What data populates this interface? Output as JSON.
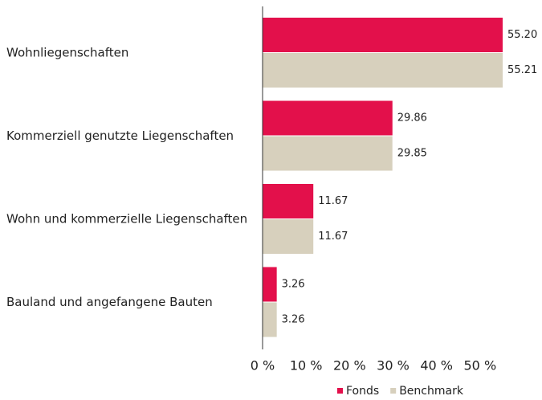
{
  "chart_data": {
    "type": "bar",
    "orientation": "horizontal",
    "categories": [
      "Wohnliegenschaften",
      "Kommerziell genutzte Liegenschaften",
      "Wohn und kommerzielle Liegenschaften",
      "Bauland und angefangene Bauten"
    ],
    "series": [
      {
        "name": "Fonds",
        "color": "#e3104b",
        "values": [
          55.2,
          29.86,
          11.67,
          3.26
        ],
        "value_labels": [
          "55.20",
          "29.86",
          "11.67",
          "3.26"
        ]
      },
      {
        "name": "Benchmark",
        "color": "#d7d0bd",
        "values": [
          55.21,
          29.85,
          11.67,
          3.26
        ],
        "value_labels": [
          "55.21",
          "29.85",
          "11.67",
          "3.26"
        ]
      }
    ],
    "xlim": [
      0,
      60
    ],
    "xticks": [
      {
        "value": 0,
        "label": "0 %"
      },
      {
        "value": 10,
        "label": "10 %"
      },
      {
        "value": 20,
        "label": "20 %"
      },
      {
        "value": 30,
        "label": "30 %"
      },
      {
        "value": 40,
        "label": "40 %"
      },
      {
        "value": 50,
        "label": "50 %"
      }
    ],
    "legend": "bottom-right"
  }
}
